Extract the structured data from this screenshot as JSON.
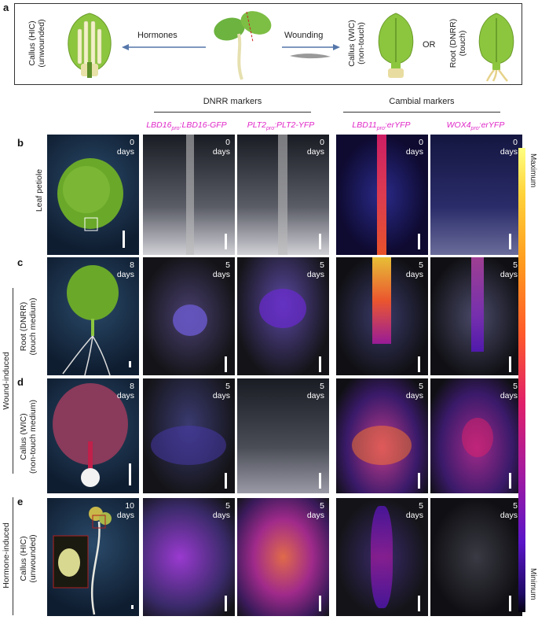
{
  "panel_a": {
    "letter": "a",
    "hic_label_line1": "Callus (HIC)",
    "hic_label_line2": "(unwounded)",
    "hormones": "Hormones",
    "wounding": "Wounding",
    "wic_label_line1": "Callus (WIC)",
    "wic_label_line2": "(non-touch)",
    "or": "OR",
    "dnrr_label_line1": "Root (DNRR)",
    "dnrr_label_line2": "(touch)"
  },
  "group_headers": {
    "dnrr": "DNRR markers",
    "cambial": "Cambial markers"
  },
  "columns": [
    {
      "name": "LBD16",
      "sub": "pro",
      "rest": ":LBD16-GFP"
    },
    {
      "name": "PLT2",
      "sub": "pro",
      "rest": ":PLT2-YFP"
    },
    {
      "name": "LBD11",
      "sub": "pro",
      "rest": ":erYFP"
    },
    {
      "name": "WOX4",
      "sub": "pro",
      "rest": ":erYFP"
    }
  ],
  "rows": [
    {
      "letter": "b",
      "label_line1": "Leaf petiole",
      "label_line2": "",
      "overview_days": "0",
      "marker_days": "0"
    },
    {
      "letter": "c",
      "label_line1": "Root (DNRR)",
      "label_line2": "(touch medium)",
      "overview_days": "8",
      "marker_days": "5"
    },
    {
      "letter": "d",
      "label_line1": "Callus (WIC)",
      "label_line2": "(non-touch medium)",
      "overview_days": "8",
      "marker_days": "5"
    },
    {
      "letter": "e",
      "label_line1": "Callus (HIC)",
      "label_line2": "(unwounded)",
      "overview_days": "10",
      "marker_days": "5"
    }
  ],
  "days_word": "days",
  "group_labels": {
    "wound": "Wound-induced",
    "hormone": "Hormone-induced"
  },
  "colorbar": {
    "max": "Maximum",
    "min": "Minimum",
    "colors": [
      "#ffff80",
      "#ff9a1e",
      "#e0206a",
      "#5a15c8",
      "#05020f"
    ]
  }
}
